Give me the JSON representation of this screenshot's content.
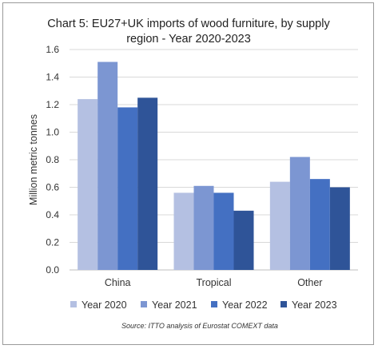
{
  "chart_data": {
    "type": "bar",
    "title_lines": [
      "Chart 5: EU27+UK imports of wood furniture, by supply",
      "region - Year 2020-2023"
    ],
    "ylabel": "Million metric tonnes",
    "xlabel": "",
    "categories": [
      "China",
      "Tropical",
      "Other"
    ],
    "series": [
      {
        "name": "Year 2020",
        "color": "#b4c0e2",
        "values": [
          1.24,
          0.56,
          0.64
        ]
      },
      {
        "name": "Year 2021",
        "color": "#7c96d2",
        "values": [
          1.51,
          0.61,
          0.82
        ]
      },
      {
        "name": "Year 2022",
        "color": "#4470c2",
        "values": [
          1.18,
          0.56,
          0.66
        ]
      },
      {
        "name": "Year 2023",
        "color": "#2f5498",
        "values": [
          1.25,
          0.43,
          0.6
        ]
      }
    ],
    "ylim": [
      0,
      1.6
    ],
    "yticks": [
      "0.0",
      "0.2",
      "0.4",
      "0.6",
      "0.8",
      "1.0",
      "1.2",
      "1.4",
      "1.6"
    ],
    "grid": true,
    "legend_position": "bottom",
    "source": "Source: ITTO analysis of Eurostat COMEXT data"
  }
}
